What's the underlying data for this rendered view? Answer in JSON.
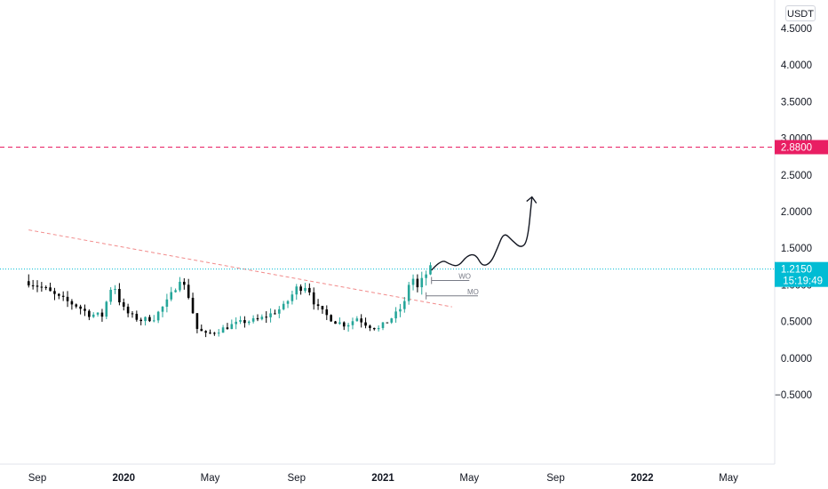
{
  "chart_data": {
    "type": "candlestick",
    "currency": "USDT",
    "y_ticks": [
      "4.5000",
      "4.0000",
      "3.5000",
      "3.0000",
      "2.5000",
      "2.0000",
      "1.5000",
      "1.0000",
      "0.5000",
      "0.0000",
      "−0.5000"
    ],
    "y_tick_values": [
      4.5,
      4.0,
      3.5,
      3.0,
      2.5,
      2.0,
      1.5,
      1.0,
      0.5,
      0.0,
      -0.5
    ],
    "ylim": [
      -0.85,
      4.8
    ],
    "x_ticks": [
      {
        "label": "Sep",
        "bold": false
      },
      {
        "label": "2020",
        "bold": true
      },
      {
        "label": "May",
        "bold": false
      },
      {
        "label": "Sep",
        "bold": false
      },
      {
        "label": "2021",
        "bold": true
      },
      {
        "label": "May",
        "bold": false
      },
      {
        "label": "Sep",
        "bold": false
      },
      {
        "label": "2022",
        "bold": true
      },
      {
        "label": "May",
        "bold": false
      }
    ],
    "x_tick_months": [
      0,
      4,
      8,
      12,
      16,
      20,
      24,
      28,
      32
    ],
    "month_range": [
      -0.4,
      35.6
    ],
    "price_path": [
      [
        -0.4,
        1.05
      ],
      [
        0.3,
        0.95
      ],
      [
        1.0,
        0.82
      ],
      [
        1.8,
        0.72
      ],
      [
        2.4,
        0.6
      ],
      [
        3.0,
        0.58
      ],
      [
        3.5,
        1.05
      ],
      [
        3.9,
        0.7
      ],
      [
        4.3,
        0.58
      ],
      [
        4.8,
        0.52
      ],
      [
        5.4,
        0.55
      ],
      [
        6.1,
        0.8
      ],
      [
        6.6,
        1.1
      ],
      [
        7.0,
        0.85
      ],
      [
        7.4,
        0.4
      ],
      [
        7.8,
        0.32
      ],
      [
        8.4,
        0.38
      ],
      [
        9.0,
        0.45
      ],
      [
        9.6,
        0.5
      ],
      [
        10.2,
        0.52
      ],
      [
        10.8,
        0.6
      ],
      [
        11.4,
        0.7
      ],
      [
        12.0,
        0.95
      ],
      [
        12.5,
        1.0
      ],
      [
        12.9,
        0.7
      ],
      [
        13.3,
        0.6
      ],
      [
        13.8,
        0.5
      ],
      [
        14.3,
        0.45
      ],
      [
        14.8,
        0.55
      ],
      [
        15.3,
        0.45
      ],
      [
        15.8,
        0.4
      ],
      [
        16.2,
        0.5
      ],
      [
        16.6,
        0.6
      ],
      [
        17.0,
        0.75
      ],
      [
        17.3,
        1.15
      ],
      [
        17.6,
        0.95
      ],
      [
        17.9,
        1.1
      ],
      [
        18.1,
        1.2
      ],
      [
        18.25,
        1.215
      ]
    ],
    "resistance_level": {
      "value": 2.88,
      "label": "2.8800",
      "color": "#e91e63"
    },
    "current_price": {
      "value": 1.215,
      "label": "1.2150",
      "countdown": "15:19:49",
      "color": "#00bcd4"
    },
    "trendline": {
      "from": [
        -0.4,
        1.75
      ],
      "to": [
        19.2,
        0.7
      ],
      "color": "#f28b8b"
    },
    "levels": [
      {
        "label": "WO",
        "value": 1.06,
        "from": 18.25,
        "to": 20.0
      },
      {
        "label": "MO",
        "value": 0.85,
        "from": 18.0,
        "to": 20.4
      }
    ],
    "projection": {
      "points": [
        [
          18.25,
          1.2
        ],
        [
          18.7,
          1.35
        ],
        [
          19.1,
          1.28
        ],
        [
          19.5,
          1.25
        ],
        [
          19.9,
          1.4
        ],
        [
          20.3,
          1.42
        ],
        [
          20.6,
          1.25
        ],
        [
          21.0,
          1.3
        ],
        [
          21.3,
          1.5
        ],
        [
          21.6,
          1.72
        ],
        [
          22.0,
          1.6
        ],
        [
          22.4,
          1.5
        ],
        [
          22.7,
          1.6
        ],
        [
          22.9,
          2.2
        ]
      ],
      "arrow_at": [
        22.9,
        2.2
      ]
    },
    "colors": {
      "up": "#26a69a",
      "down": "#000000",
      "accent": "#00bcd4"
    },
    "grid": false
  }
}
